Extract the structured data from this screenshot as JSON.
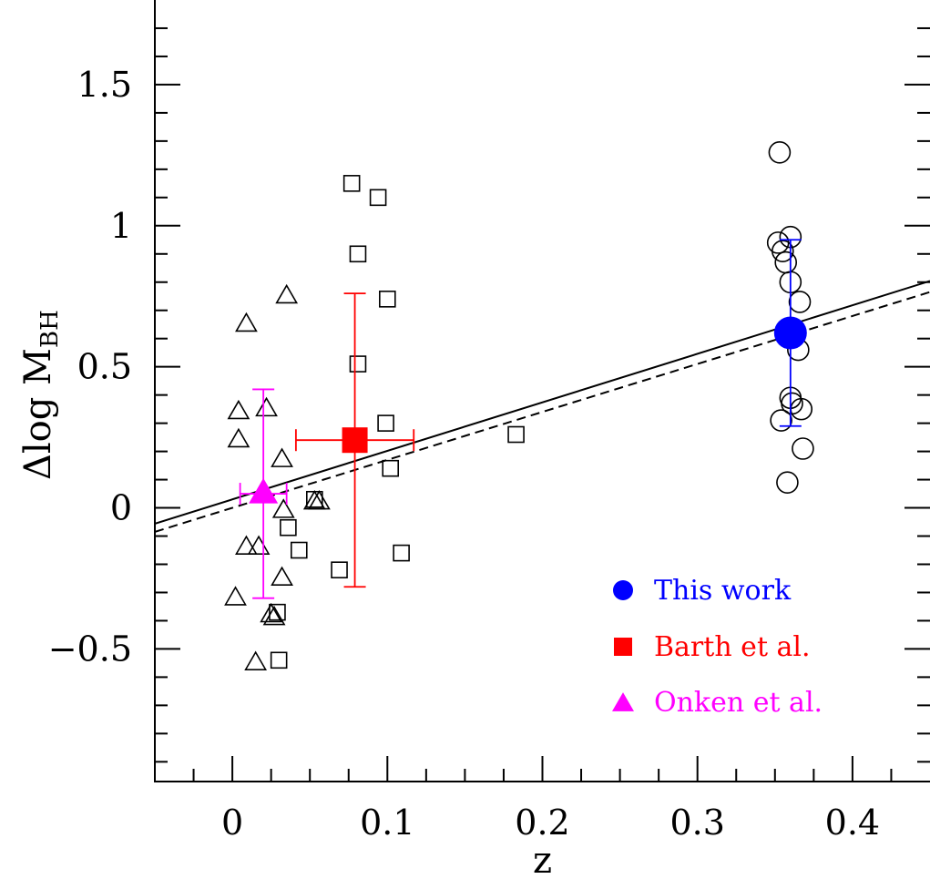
{
  "chart_data": {
    "type": "scatter",
    "xlabel": "z",
    "ylabel_main": "Δlog M",
    "ylabel_sub": "BH",
    "xlim": [
      -0.05,
      0.45
    ],
    "ylim": [
      -0.97,
      1.8
    ],
    "x_ticks": [
      0,
      0.1,
      0.2,
      0.3,
      0.4
    ],
    "x_tick_labels": [
      "0",
      "0.1",
      "0.2",
      "0.3",
      "0.4"
    ],
    "y_ticks": [
      -0.5,
      0,
      0.5,
      1,
      1.5
    ],
    "y_tick_labels": [
      "−0.5",
      "0",
      "0.5",
      "1",
      "1.5"
    ],
    "grid": false,
    "colors": {
      "this_work": "#0000ff",
      "barth": "#ff0000",
      "onken": "#ff00ff",
      "open_markers": "#000000"
    },
    "series": [
      {
        "marker": "open-triangle",
        "points": [
          [
            0.004,
            0.34
          ],
          [
            0.004,
            0.24
          ],
          [
            0.009,
            0.65
          ],
          [
            0.022,
            0.35
          ],
          [
            0.032,
            0.17
          ],
          [
            0.035,
            0.75
          ],
          [
            0.033,
            -0.01
          ],
          [
            0.053,
            0.02
          ],
          [
            0.056,
            0.02
          ],
          [
            0.009,
            -0.14
          ],
          [
            0.017,
            -0.14
          ],
          [
            0.002,
            -0.32
          ],
          [
            0.032,
            -0.25
          ],
          [
            0.025,
            -0.38
          ],
          [
            0.027,
            -0.39
          ],
          [
            0.015,
            -0.55
          ]
        ]
      },
      {
        "marker": "open-square",
        "points": [
          [
            0.077,
            1.15
          ],
          [
            0.094,
            1.1
          ],
          [
            0.081,
            0.9
          ],
          [
            0.1,
            0.74
          ],
          [
            0.081,
            0.51
          ],
          [
            0.099,
            0.3
          ],
          [
            0.183,
            0.26
          ],
          [
            0.102,
            0.14
          ],
          [
            0.053,
            0.03
          ],
          [
            0.036,
            -0.07
          ],
          [
            0.043,
            -0.15
          ],
          [
            0.109,
            -0.16
          ],
          [
            0.069,
            -0.22
          ],
          [
            0.029,
            -0.37
          ],
          [
            0.03,
            -0.54
          ]
        ]
      },
      {
        "marker": "open-circle",
        "points": [
          [
            0.353,
            1.26
          ],
          [
            0.352,
            0.94
          ],
          [
            0.355,
            0.91
          ],
          [
            0.36,
            0.96
          ],
          [
            0.357,
            0.87
          ],
          [
            0.36,
            0.8
          ],
          [
            0.366,
            0.73
          ],
          [
            0.359,
            0.62
          ],
          [
            0.365,
            0.56
          ],
          [
            0.36,
            0.39
          ],
          [
            0.361,
            0.37
          ],
          [
            0.367,
            0.35
          ],
          [
            0.354,
            0.31
          ],
          [
            0.368,
            0.21
          ],
          [
            0.358,
            0.09
          ]
        ]
      },
      {
        "name": "This work",
        "marker": "filled-circle",
        "color": "#0000ff",
        "points": [
          [
            0.36,
            0.62
          ]
        ],
        "yerr": [
          0.33
        ],
        "xerr": [
          0.004
        ]
      },
      {
        "name": "Barth et al.",
        "marker": "filled-square",
        "color": "#ff0000",
        "points": [
          [
            0.079,
            0.24
          ]
        ],
        "yerr": [
          0.52
        ],
        "xerr": [
          0.038
        ]
      },
      {
        "name": "Onken et al.",
        "marker": "filled-triangle",
        "color": "#ff00ff",
        "points": [
          [
            0.02,
            0.05
          ]
        ],
        "yerr": [
          0.37
        ],
        "xerr": [
          0.015
        ]
      }
    ],
    "lines": [
      {
        "style": "solid",
        "intercept": 0.03,
        "slope": 1.72
      },
      {
        "style": "dashed",
        "intercept": 0.0,
        "slope": 1.7
      }
    ],
    "legend": {
      "placement": "bottom-right",
      "entries": [
        {
          "label": "This work",
          "marker": "filled-circle",
          "color": "#0000ff"
        },
        {
          "label": "Barth et al.",
          "marker": "filled-square",
          "color": "#ff0000"
        },
        {
          "label": "Onken et al.",
          "marker": "filled-triangle",
          "color": "#ff00ff"
        }
      ]
    }
  }
}
